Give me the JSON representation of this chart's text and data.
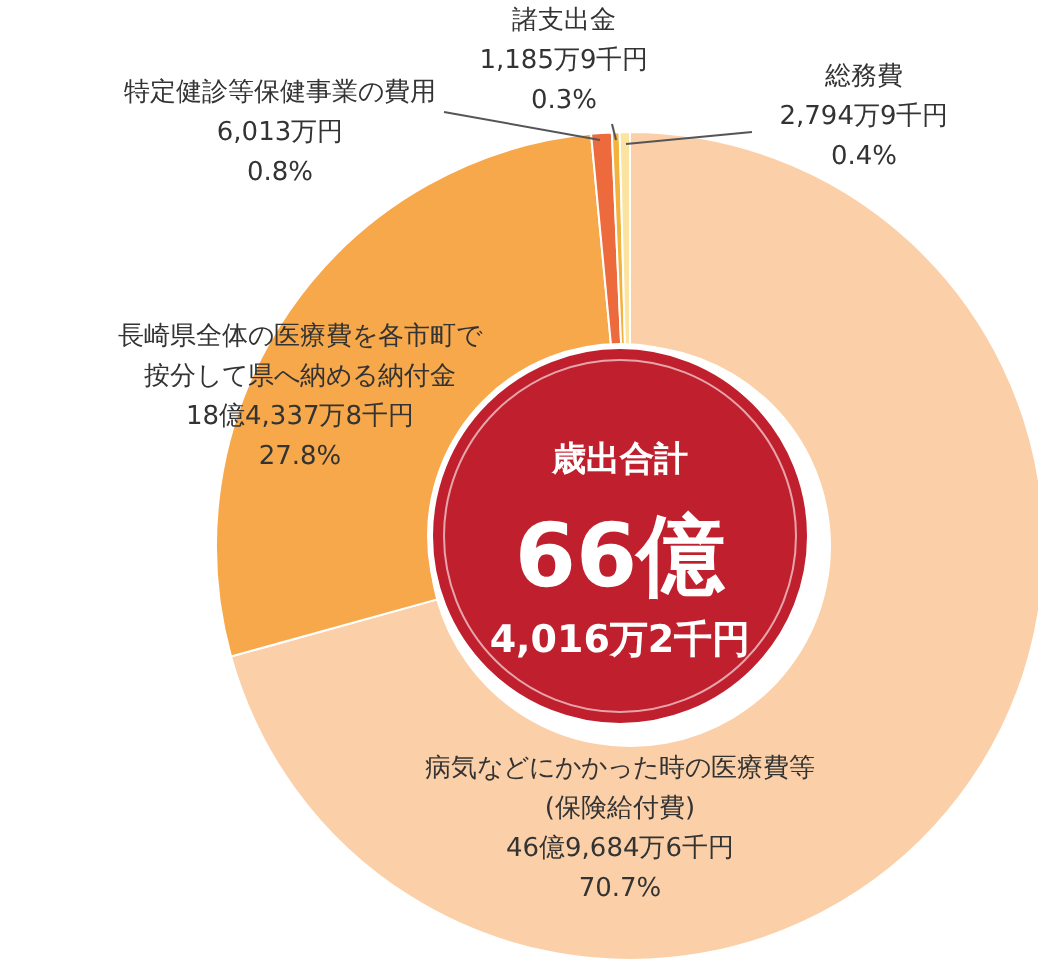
{
  "chart_data": {
    "type": "donut",
    "categories": [
      "病気などにかかった時の医療費等(保険給付費)",
      "長崎県全体の医療費を各市町で按分して県へ納める納付金",
      "特定健診等保健事業の費用",
      "諸支出金",
      "総務費"
    ],
    "values": [
      70.7,
      27.8,
      0.8,
      0.3,
      0.4
    ],
    "value_labels": [
      "46億9,684万6千円\n70.7%",
      "18億4,337万8千円\n27.8%",
      "6,013万円\n0.8%",
      "1,185万9千円\n0.3%",
      "2,794万9千円\n0.4%"
    ],
    "colors": [
      "#fbd0a8",
      "#f7a84a",
      "#ec6a3c",
      "#f3b23c",
      "#fde3a0"
    ],
    "annotations": [
      "歳出合計",
      "66億",
      "4,016万2千円"
    ]
  }
}
